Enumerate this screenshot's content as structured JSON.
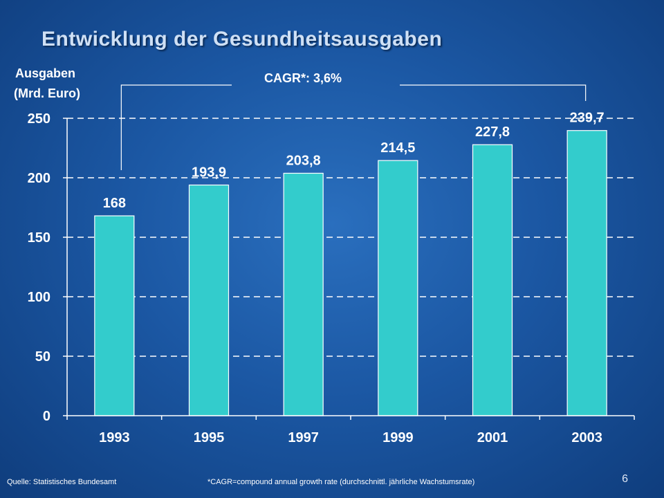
{
  "title": "Entwicklung der Gesundheitsausgaben",
  "y_axis_label_line1": "Ausgaben",
  "y_axis_label_line2": "(Mrd. Euro)",
  "annotation": "CAGR*: 3,6%",
  "footer_source": "Quelle: Statistisches Bundesamt",
  "footer_note": "*CAGR=compound annual growth rate (durchschnittl. jährliche Wachstumsrate)",
  "page_number": "6",
  "colors": {
    "bar": "#33cccc",
    "background": "#1b57a3",
    "text": "#ffffff"
  },
  "chart_data": {
    "type": "bar",
    "categories": [
      "1993",
      "1995",
      "1997",
      "1999",
      "2001",
      "2003"
    ],
    "values": [
      168,
      193.9,
      203.8,
      214.5,
      227.8,
      239.7
    ],
    "data_labels": [
      "168",
      "193,9",
      "203,8",
      "214,5",
      "227,8",
      "239,7"
    ],
    "ylim": [
      0,
      250
    ],
    "yticks": [
      0,
      50,
      100,
      150,
      200,
      250
    ],
    "ylabel": "Ausgaben (Mrd. Euro)",
    "xlabel": "",
    "grid": true,
    "legend": false
  }
}
